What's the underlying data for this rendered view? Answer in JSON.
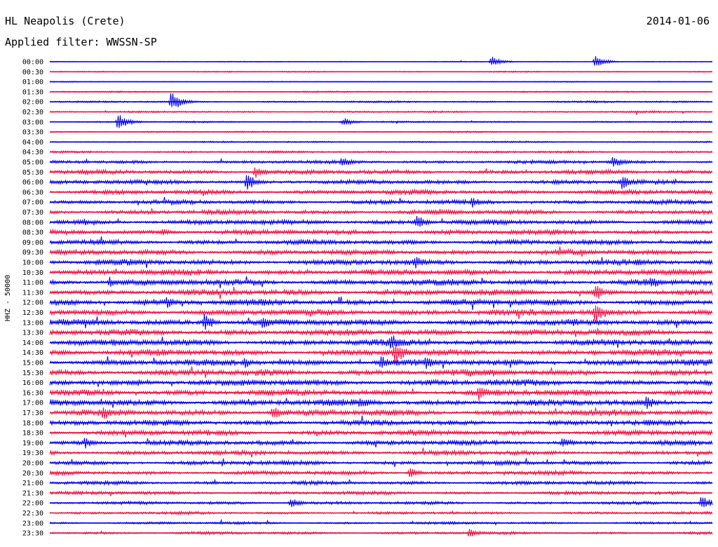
{
  "header": {
    "station": "HL Neapolis (Crete)",
    "date": "2014-01-06",
    "filter": "Applied filter: WWSSN-SP"
  },
  "chart_data": {
    "type": "line",
    "title": "HL Neapolis (Crete)",
    "ylabel": "HHZ - 50000",
    "colors": [
      "#0000ee",
      "#ee1144"
    ],
    "trace_labels": [
      "00:00",
      "00:30",
      "01:00",
      "01:30",
      "02:00",
      "02:30",
      "03:00",
      "03:30",
      "04:00",
      "04:30",
      "05:00",
      "05:30",
      "06:00",
      "06:30",
      "07:00",
      "07:30",
      "08:00",
      "08:30",
      "09:00",
      "09:30",
      "10:00",
      "10:30",
      "11:00",
      "11:30",
      "12:00",
      "12:30",
      "13:00",
      "13:30",
      "14:00",
      "14:30",
      "15:00",
      "15:30",
      "16:00",
      "16:30",
      "17:00",
      "17:30",
      "18:00",
      "18:30",
      "19:00",
      "19:30",
      "20:00",
      "20:30",
      "21:00",
      "21:30",
      "22:00",
      "22:30",
      "23:00",
      "23:30"
    ],
    "trace_activity": [
      0.15,
      0.2,
      0.15,
      0.25,
      0.3,
      0.3,
      0.25,
      0.25,
      0.25,
      0.35,
      0.55,
      0.7,
      0.7,
      0.75,
      0.7,
      0.75,
      0.8,
      0.8,
      0.8,
      0.85,
      0.9,
      0.95,
      0.95,
      0.95,
      1.0,
      1.0,
      1.0,
      1.0,
      1.0,
      1.0,
      1.0,
      1.0,
      1.0,
      1.0,
      1.0,
      1.0,
      0.85,
      0.85,
      0.8,
      0.75,
      0.7,
      0.65,
      0.6,
      0.55,
      0.5,
      0.45,
      0.4,
      0.45
    ],
    "events": [
      {
        "trace": 0,
        "minute": 20.0,
        "amp": 7
      },
      {
        "trace": 0,
        "minute": 24.7,
        "amp": 8
      },
      {
        "trace": 4,
        "minute": 5.5,
        "amp": 14
      },
      {
        "trace": 6,
        "minute": 3.1,
        "amp": 12
      },
      {
        "trace": 6,
        "minute": 13.3,
        "amp": 6
      },
      {
        "trace": 10,
        "minute": 13.2,
        "amp": 8
      },
      {
        "trace": 10,
        "minute": 25.5,
        "amp": 9
      },
      {
        "trace": 11,
        "minute": 9.3,
        "amp": 9
      },
      {
        "trace": 12,
        "minute": 8.9,
        "amp": 12
      },
      {
        "trace": 12,
        "minute": 25.9,
        "amp": 10
      },
      {
        "trace": 14,
        "minute": 19.1,
        "amp": 8
      },
      {
        "trace": 16,
        "minute": 16.6,
        "amp": 10
      },
      {
        "trace": 17,
        "minute": 5.1,
        "amp": 6
      },
      {
        "trace": 20,
        "minute": 16.5,
        "amp": 10
      },
      {
        "trace": 22,
        "minute": 2.7,
        "amp": 8
      },
      {
        "trace": 22,
        "minute": 27.2,
        "amp": 10
      },
      {
        "trace": 23,
        "minute": 24.7,
        "amp": 12
      },
      {
        "trace": 24,
        "minute": 5.3,
        "amp": 8
      },
      {
        "trace": 25,
        "minute": 24.7,
        "amp": 16
      },
      {
        "trace": 26,
        "minute": 7.0,
        "amp": 12
      },
      {
        "trace": 26,
        "minute": 9.6,
        "amp": 10
      },
      {
        "trace": 28,
        "minute": 15.4,
        "amp": 14
      },
      {
        "trace": 29,
        "minute": 15.6,
        "amp": 18
      },
      {
        "trace": 30,
        "minute": 8.8,
        "amp": 8
      },
      {
        "trace": 30,
        "minute": 15.0,
        "amp": 9
      },
      {
        "trace": 30,
        "minute": 17.0,
        "amp": 9
      },
      {
        "trace": 33,
        "minute": 19.4,
        "amp": 12
      },
      {
        "trace": 34,
        "minute": 14.0,
        "amp": 10
      },
      {
        "trace": 34,
        "minute": 27.0,
        "amp": 10
      },
      {
        "trace": 35,
        "minute": 2.4,
        "amp": 10
      },
      {
        "trace": 35,
        "minute": 10.1,
        "amp": 10
      },
      {
        "trace": 38,
        "minute": 1.6,
        "amp": 8
      },
      {
        "trace": 38,
        "minute": 23.2,
        "amp": 8
      },
      {
        "trace": 41,
        "minute": 16.3,
        "amp": 8
      },
      {
        "trace": 44,
        "minute": 10.9,
        "amp": 7
      },
      {
        "trace": 44,
        "minute": 29.5,
        "amp": 10
      },
      {
        "trace": 47,
        "minute": 19.0,
        "amp": 7
      }
    ]
  }
}
